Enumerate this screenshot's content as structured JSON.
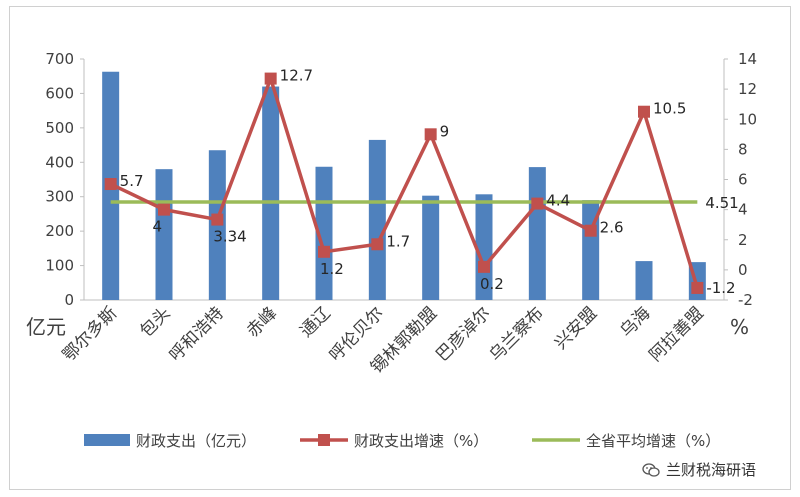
{
  "chart_data": {
    "type": "bar+line",
    "categories": [
      "鄂尔多斯",
      "包头",
      "呼和浩特",
      "赤峰",
      "通辽",
      "呼伦贝尔",
      "锡林郭勒盟",
      "巴彦淖尔",
      "乌兰察布",
      "兴安盟",
      "乌海",
      "阿拉善盟"
    ],
    "series": [
      {
        "name": "财政支出（亿元）",
        "type": "bar",
        "axis": "left",
        "color": "#4f81bd",
        "values": [
          663,
          380,
          435,
          620,
          387,
          465,
          303,
          307,
          386,
          290,
          113,
          110
        ]
      },
      {
        "name": "财政支出增速（%）",
        "type": "line",
        "axis": "right",
        "color": "#c0504d",
        "marker": "square",
        "values": [
          5.7,
          4,
          3.34,
          12.7,
          1.2,
          1.7,
          9,
          0.2,
          4.4,
          2.6,
          10.5,
          -1.2
        ],
        "labels": [
          "5.7",
          "4",
          "3.34",
          "12.7",
          "1.2",
          "1.7",
          "9",
          "0.2",
          "4.4",
          "2.6",
          "10.5",
          "-1.2"
        ]
      },
      {
        "name": "全省平均增速（%）",
        "type": "line",
        "axis": "right",
        "color": "#9bbb59",
        "value": 4.51,
        "label": "4.51"
      }
    ],
    "y_left": {
      "ticks": [
        "0",
        "100",
        "200",
        "300",
        "400",
        "500",
        "600",
        "700"
      ],
      "ylim": [
        0,
        700
      ],
      "unit": "亿元"
    },
    "y_right": {
      "ticks": [
        "-2",
        "0",
        "2",
        "4",
        "6",
        "8",
        "10",
        "12",
        "14"
      ],
      "ylim": [
        -2,
        14
      ],
      "unit": "%"
    },
    "legend_position": "bottom",
    "grid": false
  },
  "watermark": {
    "text": "兰财税海研语",
    "icon": "wechat-icon"
  }
}
